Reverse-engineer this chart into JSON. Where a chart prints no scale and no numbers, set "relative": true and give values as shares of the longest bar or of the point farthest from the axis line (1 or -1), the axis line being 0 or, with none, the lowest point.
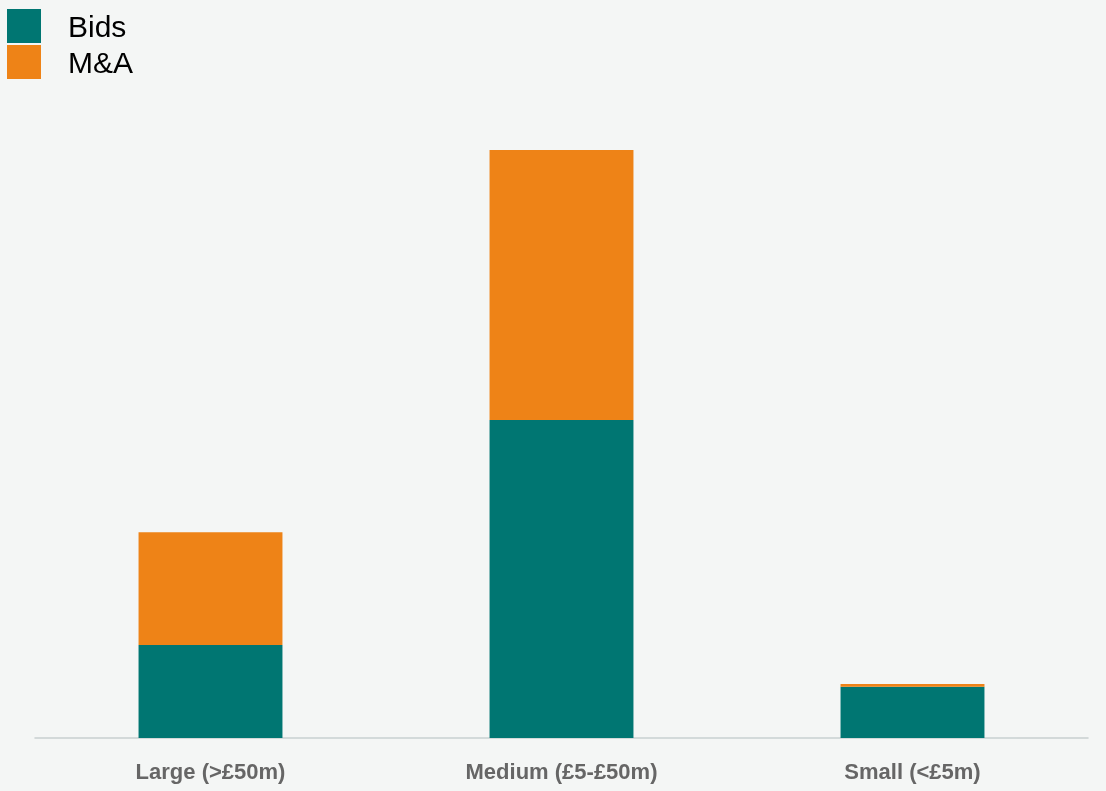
{
  "chart_data": {
    "type": "bar",
    "stacked": true,
    "relative": true,
    "legend": "top left",
    "categories": [
      "Large (>£50m)",
      "Medium (£5-£50m)",
      "Small (<£5m)"
    ],
    "series": [
      {
        "name": "Bids",
        "color": "#007672",
        "values": [
          0.158,
          0.541,
          0.087
        ]
      },
      {
        "name": "M&A",
        "color": "#ee8317",
        "values": [
          0.192,
          0.459,
          0.005
        ]
      }
    ]
  }
}
